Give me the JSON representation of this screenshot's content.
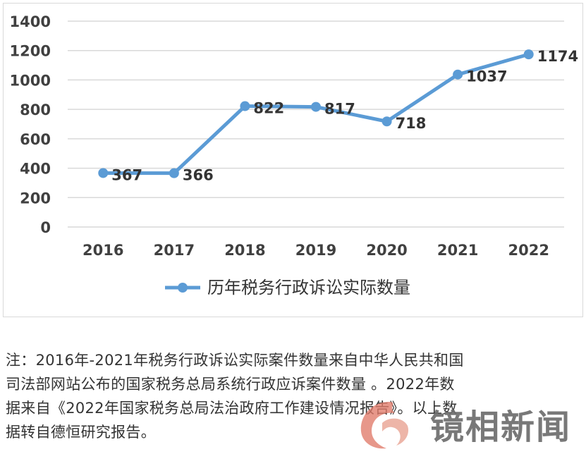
{
  "chart_data": {
    "type": "line",
    "categories": [
      "2016",
      "2017",
      "2018",
      "2019",
      "2020",
      "2021",
      "2022"
    ],
    "series": [
      {
        "name": "历年税务行政诉讼实际数量",
        "values": [
          367,
          366,
          822,
          817,
          718,
          1037,
          1174
        ]
      }
    ],
    "data_labels": [
      "367",
      "366",
      "822",
      "817",
      "718",
      "1037",
      "1174"
    ],
    "y_ticks": [
      "0",
      "200",
      "400",
      "600",
      "800",
      "1000",
      "1200",
      "1400"
    ],
    "ylim": [
      0,
      1400
    ],
    "grid": true,
    "legend_position": "bottom",
    "line_color": "#5b9bd5"
  },
  "note": {
    "lines": [
      "注：2016年-2021年税务行政诉讼实际案件数量来自中华人民共和国",
      "司法部网站公布的国家税务总局系统行政应诉案件数量 。2022年数",
      "据来自《2022年国家税务总局法治政府工作建设情况报告》。以上数",
      "据转自德恒研究报告。"
    ]
  },
  "watermark": {
    "text": "镜相新闻",
    "logo_color": "#e07a6a"
  }
}
